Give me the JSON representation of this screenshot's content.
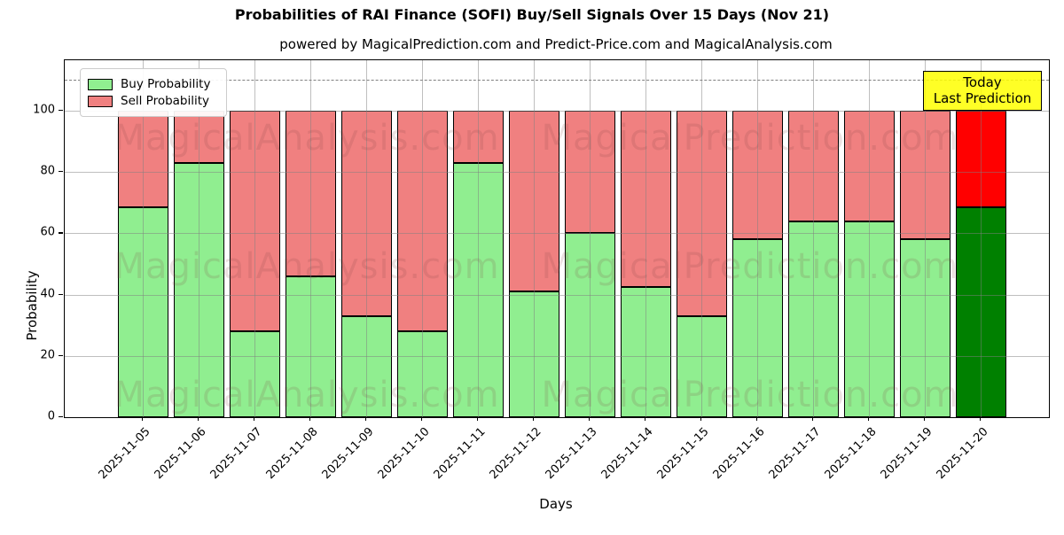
{
  "title": "Probabilities of RAI Finance (SOFI) Buy/Sell Signals Over 15 Days (Nov 21)",
  "subtitle": "powered by MagicalPrediction.com and Predict-Price.com and MagicalAnalysis.com",
  "legend": {
    "buy_label": "Buy Probability",
    "sell_label": "Sell Probability"
  },
  "annotation": {
    "line1": "Today",
    "line2": "Last Prediction"
  },
  "watermarks": {
    "left": "MagicalAnalysis.com",
    "right": "MagicalPrediction.com"
  },
  "colors": {
    "buy_normal": "#90EE90",
    "sell_normal": "#F08080",
    "buy_today": "#008000",
    "sell_today": "#FF0000",
    "annotation_bg": "#FFFF00",
    "grid": "#808080",
    "bar_edge": "#000000"
  },
  "chart_data": {
    "type": "bar",
    "stacked": true,
    "title": "Probabilities of RAI Finance (SOFI) Buy/Sell Signals Over 15 Days (Nov 21)",
    "xlabel": "Days",
    "ylabel": "Probability",
    "categories": [
      "2025-11-05",
      "2025-11-06",
      "2025-11-07",
      "2025-11-08",
      "2025-11-09",
      "2025-11-10",
      "2025-11-11",
      "2025-11-12",
      "2025-11-13",
      "2025-11-14",
      "2025-11-15",
      "2025-11-16",
      "2025-11-17",
      "2025-11-18",
      "2025-11-19",
      "2025-11-20"
    ],
    "series": [
      {
        "name": "Buy Probability",
        "values": [
          68.5,
          83,
          28,
          46,
          33,
          28,
          83,
          41,
          60,
          42.5,
          33,
          58,
          64,
          64,
          58,
          68.5
        ]
      },
      {
        "name": "Sell Probability",
        "values": [
          31.5,
          17,
          72,
          54,
          67,
          72,
          17,
          59,
          40,
          57.5,
          67,
          42,
          36,
          36,
          42,
          31.5
        ]
      }
    ],
    "today_index": 15,
    "yticks": [
      0,
      20,
      40,
      60,
      80,
      100
    ],
    "ylim": [
      0,
      116.5
    ],
    "dashed_line_y": 110,
    "grid": true,
    "legend_position": "upper-left"
  }
}
